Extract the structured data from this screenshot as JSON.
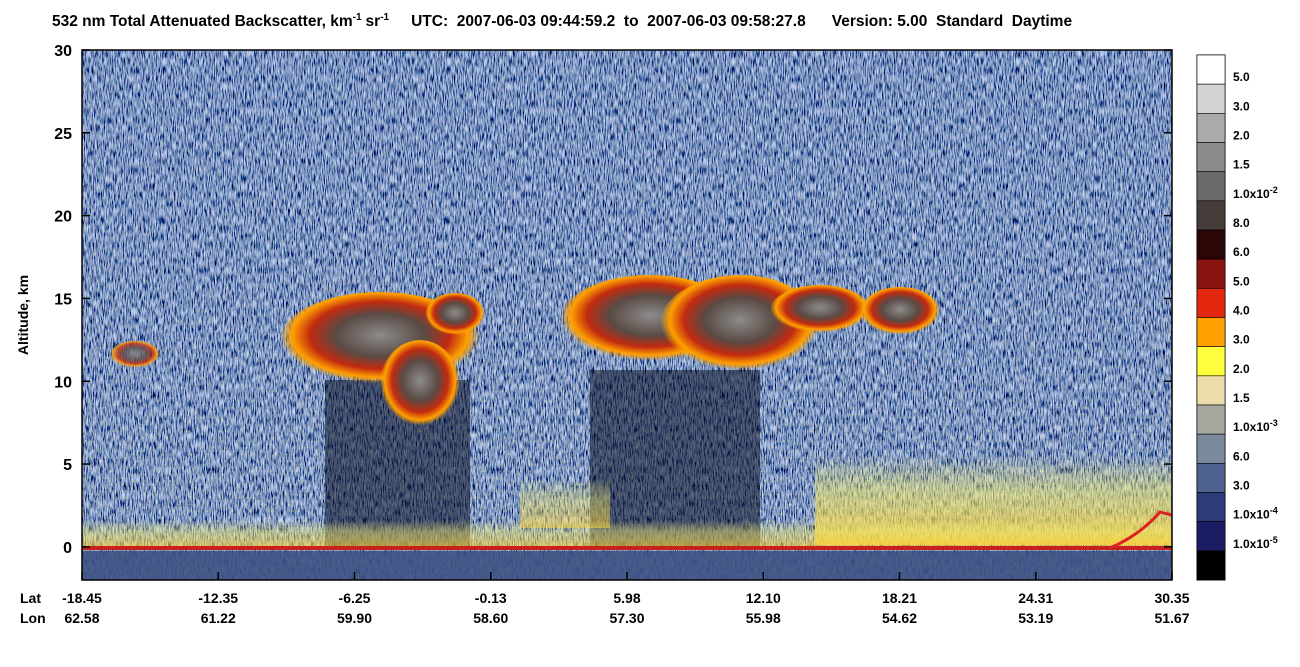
{
  "chart_data": {
    "type": "curtain",
    "title": {
      "main": "532 nm Total Attenuated Backscatter, km",
      "exp1": "-1",
      "sr": "sr",
      "exp2": "-1",
      "time": "UTC:  2007-06-03 09:44:59.2  to  2007-06-03 09:58:27.8",
      "version": "Version: 5.00  Standard  Daytime"
    },
    "y_label": "Altitude, km",
    "ylim": [
      -2,
      30
    ],
    "yticks": [
      0,
      5,
      10,
      15,
      20,
      25,
      30
    ],
    "x_row_labels": [
      "Lat",
      "Lon"
    ],
    "lat": [
      "-18.45",
      "-12.35",
      "-6.25",
      "-0.13",
      "5.98",
      "12.10",
      "18.21",
      "24.31",
      "30.35"
    ],
    "lon": [
      "62.58",
      "61.22",
      "59.90",
      "58.60",
      "57.30",
      "55.98",
      "54.62",
      "53.19",
      "51.67"
    ],
    "colorbar_colors": [
      "#ffffff",
      "#d4d4d4",
      "#aaaaaa",
      "#8c8c8c",
      "#6a6a6a",
      "#463c3a",
      "#2c0606",
      "#8a1510",
      "#e3260e",
      "#ffa000",
      "#ffff3c",
      "#ecdcaa",
      "#a5a89e",
      "#7a8a9c",
      "#4e6290",
      "#2c3c78",
      "#1c1c64",
      "#000000"
    ],
    "colorbar_labels": [
      {
        "text": "5.0"
      },
      {
        "text": "3.0"
      },
      {
        "text": "2.0"
      },
      {
        "text": "1.5"
      },
      {
        "text": "1.0x10",
        "exp": "-2"
      },
      {
        "text": "8.0"
      },
      {
        "text": "6.0"
      },
      {
        "text": "5.0"
      },
      {
        "text": "4.0"
      },
      {
        "text": "3.0"
      },
      {
        "text": "2.0"
      },
      {
        "text": "1.5"
      },
      {
        "text": "1.0x10",
        "exp": "-3"
      },
      {
        "text": "6.0"
      },
      {
        "text": "3.0"
      },
      {
        "text": "1.0x10",
        "exp": "-4"
      },
      {
        "text": "1.0x10",
        "exp": "-5"
      }
    ]
  }
}
